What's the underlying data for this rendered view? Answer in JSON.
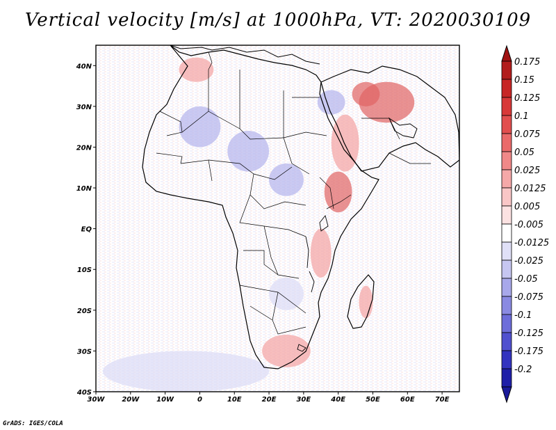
{
  "title": "Vertical velocity [m/s] at 1000hPa, VT: 2020030109",
  "footer": "GrADS: IGES/COLA",
  "map": {
    "projection": "latlon",
    "lon_range": [
      -30,
      75
    ],
    "lat_range": [
      -40,
      45
    ],
    "lon_ticks": [
      {
        "value": -30,
        "label": "30W"
      },
      {
        "value": -20,
        "label": "20W"
      },
      {
        "value": -10,
        "label": "10W"
      },
      {
        "value": 0,
        "label": "0"
      },
      {
        "value": 10,
        "label": "10E"
      },
      {
        "value": 20,
        "label": "20E"
      },
      {
        "value": 30,
        "label": "30E"
      },
      {
        "value": 40,
        "label": "40E"
      },
      {
        "value": 50,
        "label": "50E"
      },
      {
        "value": 60,
        "label": "60E"
      },
      {
        "value": 70,
        "label": "70E"
      }
    ],
    "lat_ticks": [
      {
        "value": 40,
        "label": "40N"
      },
      {
        "value": 30,
        "label": "30N"
      },
      {
        "value": 20,
        "label": "20N"
      },
      {
        "value": 10,
        "label": "10N"
      },
      {
        "value": 0,
        "label": "EQ"
      },
      {
        "value": -10,
        "label": "10S"
      },
      {
        "value": -20,
        "label": "20S"
      },
      {
        "value": -30,
        "label": "30S"
      },
      {
        "value": -40,
        "label": "40S"
      }
    ],
    "field_regions": [
      {
        "name": "ethiopian-highlands",
        "sign": "positive",
        "level": 3,
        "lon": [
          36,
          44
        ],
        "lat": [
          4,
          14
        ]
      },
      {
        "name": "arabian-red-sea-coast",
        "sign": "positive",
        "level": 2,
        "lon": [
          38,
          46
        ],
        "lat": [
          14,
          28
        ]
      },
      {
        "name": "iran-plateau",
        "sign": "positive",
        "level": 3,
        "lon": [
          46,
          62
        ],
        "lat": [
          26,
          36
        ]
      },
      {
        "name": "zagros",
        "sign": "positive",
        "level": 3,
        "lon": [
          44,
          52
        ],
        "lat": [
          30,
          36
        ]
      },
      {
        "name": "iberia-atlas",
        "sign": "positive",
        "level": 2,
        "lon": [
          -6,
          4
        ],
        "lat": [
          36,
          42
        ]
      },
      {
        "name": "south-africa-escarpment",
        "sign": "positive",
        "level": 2,
        "lon": [
          18,
          32
        ],
        "lat": [
          -34,
          -26
        ]
      },
      {
        "name": "madagascar-highlands",
        "sign": "positive",
        "level": 2,
        "lon": [
          46,
          50
        ],
        "lat": [
          -22,
          -14
        ]
      },
      {
        "name": "east-african-rift",
        "sign": "positive",
        "level": 2,
        "lon": [
          32,
          38
        ],
        "lat": [
          -12,
          0
        ]
      },
      {
        "name": "sahara-west",
        "sign": "negative",
        "level": 2,
        "lon": [
          -6,
          6
        ],
        "lat": [
          20,
          30
        ]
      },
      {
        "name": "sahara-central",
        "sign": "negative",
        "level": 2,
        "lon": [
          8,
          20
        ],
        "lat": [
          14,
          24
        ]
      },
      {
        "name": "sudan-sahel",
        "sign": "negative",
        "level": 2,
        "lon": [
          20,
          30
        ],
        "lat": [
          8,
          16
        ]
      },
      {
        "name": "middle-east",
        "sign": "negative",
        "level": 2,
        "lon": [
          34,
          42
        ],
        "lat": [
          28,
          34
        ]
      },
      {
        "name": "southern-africa-interior",
        "sign": "negative",
        "level": 1,
        "lon": [
          20,
          30
        ],
        "lat": [
          -20,
          -12
        ]
      },
      {
        "name": "southern-ocean",
        "sign": "negative",
        "level": 1,
        "lon": [
          -28,
          20
        ],
        "lat": [
          -40,
          -30
        ]
      }
    ]
  },
  "colorbar": {
    "levels": [
      {
        "label": "0.175",
        "color": "#b21c1c"
      },
      {
        "label": "0.15",
        "color": "#c72626"
      },
      {
        "label": "0.125",
        "color": "#d83838"
      },
      {
        "label": "0.1",
        "color": "#e24e4e"
      },
      {
        "label": "0.075",
        "color": "#ea6a6a"
      },
      {
        "label": "0.05",
        "color": "#f08888"
      },
      {
        "label": "0.025",
        "color": "#f5a8a8"
      },
      {
        "label": "0.0125",
        "color": "#f9c6c6"
      },
      {
        "label": "0.005",
        "color": "#fce2e2"
      },
      {
        "label": "-0.005",
        "color": "#ffffff"
      },
      {
        "label": "-0.0125",
        "color": "#e0e0f7"
      },
      {
        "label": "-0.025",
        "color": "#c6c6f1"
      },
      {
        "label": "-0.05",
        "color": "#a8a8ea"
      },
      {
        "label": "-0.075",
        "color": "#8a8ae2"
      },
      {
        "label": "-0.1",
        "color": "#6d6dda"
      },
      {
        "label": "-0.125",
        "color": "#5050cf"
      },
      {
        "label": "-0.175",
        "color": "#3333bf"
      },
      {
        "label": "-0.2",
        "color": "#1f1fa8"
      }
    ],
    "top_color": "#a01212",
    "bottom_color": "#1a1a9a"
  }
}
